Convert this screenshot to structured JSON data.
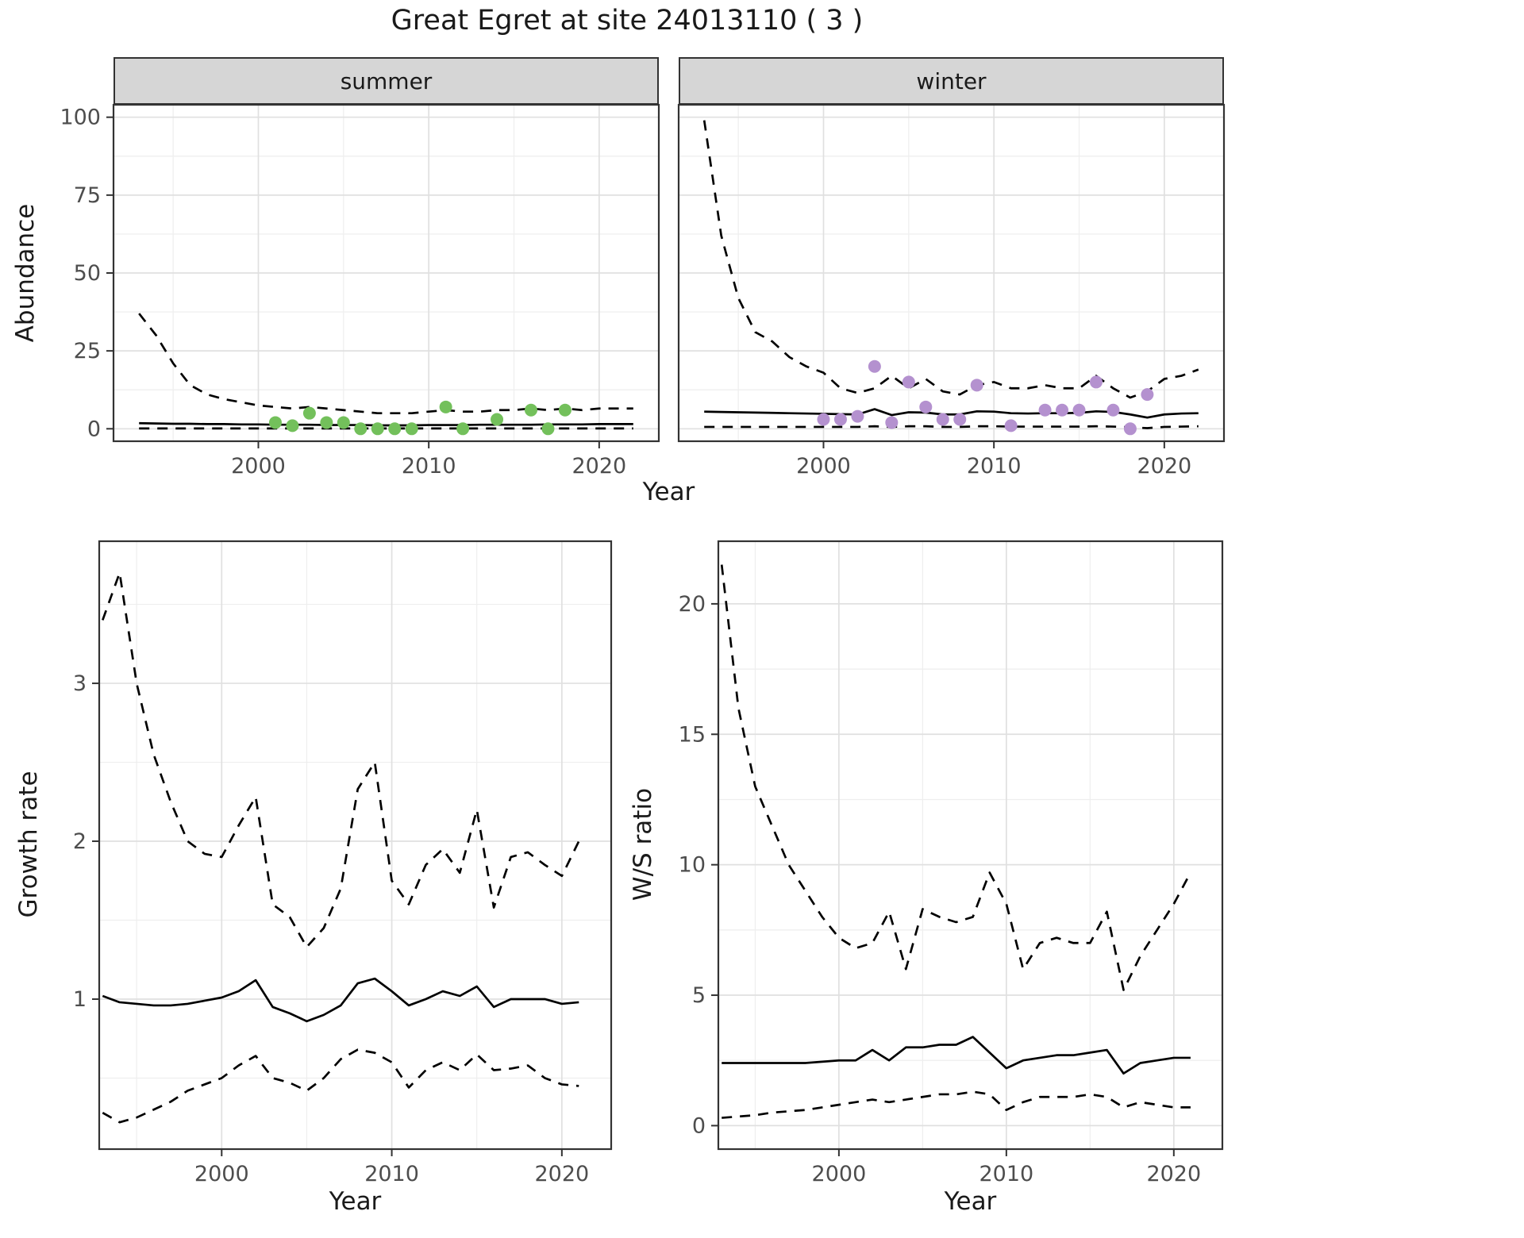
{
  "title": "Great Egret at site 24013110 ( 3 )",
  "style": {
    "line_color": "#000000",
    "panel_border": "#333333",
    "grid_major": "#e0e0e0",
    "grid_minor": "#eeeeee",
    "strip_background": "#d6d6d6",
    "strip_text": "#1a1a1a",
    "tick_text": "#4d4d4d",
    "summer_point_color": "#73c05b",
    "winter_point_color": "#b491cf"
  },
  "chart_data": [
    {
      "id": "abundance_summer",
      "type": "line+scatter",
      "facet_label": "summer",
      "xlabel": "Year",
      "ylabel": "Abundance",
      "xlim": [
        1991.5,
        2023.5
      ],
      "ylim": [
        -4,
        104
      ],
      "xticks": [
        2000,
        2010,
        2020
      ],
      "yticks": [
        0,
        25,
        50,
        75,
        100
      ],
      "years": [
        1993,
        1994,
        1995,
        1996,
        1997,
        1998,
        1999,
        2000,
        2001,
        2002,
        2003,
        2004,
        2005,
        2006,
        2007,
        2008,
        2009,
        2010,
        2011,
        2012,
        2013,
        2014,
        2015,
        2016,
        2017,
        2018,
        2019,
        2020,
        2021,
        2022
      ],
      "series": [
        {
          "name": "median",
          "style": "solid",
          "values": [
            1.8,
            1.7,
            1.6,
            1.6,
            1.5,
            1.5,
            1.4,
            1.4,
            1.3,
            1.3,
            1.3,
            1.2,
            1.2,
            1.2,
            1.1,
            1.1,
            1.1,
            1.2,
            1.2,
            1.2,
            1.3,
            1.3,
            1.3,
            1.3,
            1.4,
            1.4,
            1.4,
            1.5,
            1.5,
            1.5
          ]
        },
        {
          "name": "upper_ci",
          "style": "dashed",
          "values": [
            37,
            30,
            21,
            14,
            11,
            9.5,
            8.5,
            7.5,
            7,
            6.5,
            7,
            6.5,
            6,
            5.5,
            5,
            5,
            5,
            5.5,
            6,
            5.5,
            5.5,
            6,
            6,
            6.5,
            6,
            6.5,
            6,
            6.5,
            6.5,
            6.5
          ]
        },
        {
          "name": "lower_ci",
          "style": "dashed",
          "values": [
            0.1,
            0.1,
            0.1,
            0.1,
            0.1,
            0.1,
            0.1,
            0.1,
            0.1,
            0.1,
            0.1,
            0.1,
            0.1,
            0.1,
            0.1,
            0.1,
            0.1,
            0.1,
            0.1,
            0.1,
            0.1,
            0.1,
            0.1,
            0.1,
            0.1,
            0.1,
            0.1,
            0.1,
            0.1,
            0.1
          ]
        }
      ],
      "points": {
        "name": "observed_counts",
        "color": "#73c05b",
        "x": [
          2001,
          2002,
          2003,
          2004,
          2005,
          2006,
          2007,
          2008,
          2009,
          2011,
          2012,
          2014,
          2016,
          2017,
          2018
        ],
        "y": [
          2,
          1,
          5,
          2,
          2,
          0,
          0,
          0,
          0,
          7,
          0,
          3,
          6,
          0,
          6
        ]
      }
    },
    {
      "id": "abundance_winter",
      "type": "line+scatter",
      "facet_label": "winter",
      "xlabel": "Year",
      "ylabel": "Abundance",
      "xlim": [
        1991.5,
        2023.5
      ],
      "ylim": [
        -4,
        104
      ],
      "xticks": [
        2000,
        2010,
        2020
      ],
      "yticks": [
        0,
        25,
        50,
        75,
        100
      ],
      "years": [
        1993,
        1994,
        1995,
        1996,
        1997,
        1998,
        1999,
        2000,
        2001,
        2002,
        2003,
        2004,
        2005,
        2006,
        2007,
        2008,
        2009,
        2010,
        2011,
        2012,
        2013,
        2014,
        2015,
        2016,
        2017,
        2018,
        2019,
        2020,
        2021,
        2022
      ],
      "series": [
        {
          "name": "median",
          "style": "solid",
          "values": [
            5.5,
            5.4,
            5.3,
            5.2,
            5.1,
            5.0,
            4.9,
            4.8,
            4.7,
            4.6,
            6.3,
            4.4,
            5.3,
            5.2,
            4.6,
            4.6,
            5.6,
            5.5,
            5.0,
            4.9,
            5.0,
            5.0,
            5.1,
            5.6,
            5.4,
            4.6,
            3.6,
            4.6,
            4.9,
            5.0
          ]
        },
        {
          "name": "upper_ci",
          "style": "dashed",
          "values": [
            99,
            62,
            42,
            31,
            28,
            23,
            20,
            18,
            13,
            11.5,
            13,
            17,
            13,
            16,
            12,
            11,
            14,
            15,
            13,
            13,
            14,
            13,
            13,
            17,
            13,
            10,
            12,
            16,
            17,
            19
          ]
        },
        {
          "name": "lower_ci",
          "style": "dashed",
          "values": [
            0.6,
            0.6,
            0.6,
            0.6,
            0.6,
            0.6,
            0.6,
            0.6,
            0.6,
            0.6,
            0.8,
            0.6,
            0.8,
            0.8,
            0.6,
            0.6,
            0.8,
            0.8,
            0.7,
            0.7,
            0.7,
            0.7,
            0.7,
            0.8,
            0.7,
            0.5,
            0.2,
            0.6,
            0.7,
            0.8
          ]
        }
      ],
      "points": {
        "name": "observed_counts",
        "color": "#b491cf",
        "x": [
          2000,
          2001,
          2002,
          2003,
          2004,
          2005,
          2006,
          2007,
          2008,
          2009,
          2011,
          2013,
          2014,
          2015,
          2016,
          2017,
          2018,
          2019
        ],
        "y": [
          3,
          3,
          4,
          20,
          2,
          15,
          7,
          3,
          3,
          14,
          1,
          6,
          6,
          6,
          15,
          6,
          0,
          11
        ]
      }
    },
    {
      "id": "growth_rate",
      "type": "line",
      "xlabel": "Year",
      "ylabel": "Growth rate",
      "xlim": [
        1992.8,
        2022.9
      ],
      "ylim": [
        0.05,
        3.9
      ],
      "xticks": [
        2000,
        2010,
        2020
      ],
      "yticks": [
        1,
        2,
        3
      ],
      "years": [
        1993,
        1994,
        1995,
        1996,
        1997,
        1998,
        1999,
        2000,
        2001,
        2002,
        2003,
        2004,
        2005,
        2006,
        2007,
        2008,
        2009,
        2010,
        2011,
        2012,
        2013,
        2014,
        2015,
        2016,
        2017,
        2018,
        2019,
        2020,
        2021
      ],
      "series": [
        {
          "name": "median",
          "style": "solid",
          "values": [
            1.02,
            0.98,
            0.97,
            0.96,
            0.96,
            0.97,
            0.99,
            1.01,
            1.05,
            1.12,
            0.95,
            0.91,
            0.86,
            0.9,
            0.96,
            1.1,
            1.13,
            1.05,
            0.96,
            1.0,
            1.05,
            1.02,
            1.08,
            0.95,
            1.0,
            1.0,
            1.0,
            0.97,
            0.98
          ]
        },
        {
          "name": "upper_ci",
          "style": "dashed",
          "values": [
            3.4,
            3.7,
            3.0,
            2.55,
            2.25,
            2.0,
            1.92,
            1.9,
            2.1,
            2.28,
            1.6,
            1.52,
            1.33,
            1.45,
            1.7,
            2.33,
            2.5,
            1.75,
            1.6,
            1.85,
            1.95,
            1.8,
            2.2,
            1.58,
            1.9,
            1.93,
            1.85,
            1.78,
            2.0
          ]
        },
        {
          "name": "lower_ci",
          "style": "dashed",
          "values": [
            0.28,
            0.22,
            0.25,
            0.3,
            0.35,
            0.42,
            0.46,
            0.5,
            0.58,
            0.64,
            0.5,
            0.47,
            0.42,
            0.5,
            0.62,
            0.68,
            0.66,
            0.6,
            0.44,
            0.55,
            0.6,
            0.55,
            0.65,
            0.55,
            0.56,
            0.58,
            0.5,
            0.46,
            0.45
          ]
        }
      ]
    },
    {
      "id": "ws_ratio",
      "type": "line",
      "xlabel": "Year",
      "ylabel": "W/S ratio",
      "xlim": [
        1992.8,
        2022.9
      ],
      "ylim": [
        -0.9,
        22.4
      ],
      "xticks": [
        2000,
        2010,
        2020
      ],
      "yticks": [
        0,
        5,
        10,
        15,
        20
      ],
      "years": [
        1993,
        1994,
        1995,
        1996,
        1997,
        1998,
        1999,
        2000,
        2001,
        2002,
        2003,
        2004,
        2005,
        2006,
        2007,
        2008,
        2009,
        2010,
        2011,
        2012,
        2013,
        2014,
        2015,
        2016,
        2017,
        2018,
        2019,
        2020,
        2021
      ],
      "series": [
        {
          "name": "median",
          "style": "solid",
          "values": [
            2.4,
            2.4,
            2.4,
            2.4,
            2.4,
            2.4,
            2.45,
            2.5,
            2.5,
            2.9,
            2.5,
            3.0,
            3.0,
            3.1,
            3.1,
            3.4,
            2.8,
            2.2,
            2.5,
            2.6,
            2.7,
            2.7,
            2.8,
            2.9,
            2.0,
            2.4,
            2.5,
            2.6,
            2.6
          ]
        },
        {
          "name": "upper_ci",
          "style": "dashed",
          "values": [
            21.5,
            16.0,
            13.0,
            11.5,
            10.0,
            9.0,
            8.0,
            7.2,
            6.8,
            7.0,
            8.2,
            6.0,
            8.3,
            8.0,
            7.8,
            8.0,
            9.7,
            8.5,
            6.0,
            7.0,
            7.2,
            7.0,
            7.0,
            8.2,
            5.2,
            6.5,
            7.5,
            8.5,
            9.7
          ]
        },
        {
          "name": "lower_ci",
          "style": "dashed",
          "values": [
            0.3,
            0.35,
            0.4,
            0.5,
            0.55,
            0.6,
            0.7,
            0.8,
            0.9,
            1.0,
            0.9,
            1.0,
            1.1,
            1.2,
            1.2,
            1.3,
            1.2,
            0.6,
            0.9,
            1.1,
            1.1,
            1.1,
            1.2,
            1.1,
            0.7,
            0.9,
            0.8,
            0.7,
            0.7
          ]
        }
      ]
    }
  ]
}
